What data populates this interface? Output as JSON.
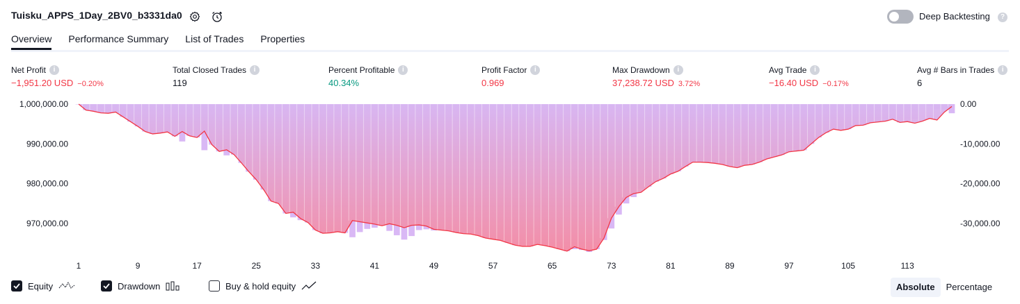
{
  "header": {
    "title": "Tuisku_APPS_1Day_2BV0_b3331da0",
    "deep_backtesting_label": "Deep Backtesting",
    "deep_backtesting_enabled": false
  },
  "tabs": [
    "Overview",
    "Performance Summary",
    "List of Trades",
    "Properties"
  ],
  "active_tab": "Overview",
  "metrics": {
    "net_profit": {
      "label": "Net Profit",
      "value": "−1,951.20 USD",
      "pct": "−0.20%"
    },
    "total_closed_trades": {
      "label": "Total Closed Trades",
      "value": "119"
    },
    "percent_profitable": {
      "label": "Percent Profitable",
      "value": "40.34%"
    },
    "profit_factor": {
      "label": "Profit Factor",
      "value": "0.969"
    },
    "max_drawdown": {
      "label": "Max Drawdown",
      "value": "37,238.72 USD",
      "pct": "3.72%"
    },
    "avg_trade": {
      "label": "Avg Trade",
      "value": "−16.40 USD",
      "pct": "−0.17%"
    },
    "avg_bars": {
      "label": "Avg # Bars in Trades",
      "value": "6"
    }
  },
  "legend": {
    "equity": {
      "label": "Equity",
      "checked": true
    },
    "drawdown": {
      "label": "Drawdown",
      "checked": true
    },
    "buy_hold": {
      "label": "Buy & hold equity",
      "checked": false
    }
  },
  "mode": {
    "options": [
      "Absolute",
      "Percentage"
    ],
    "selected": "Absolute"
  },
  "colors": {
    "equity_line": "#f23645",
    "drawdown_bar": "#d9b8f5",
    "area_top": "#d8b6f2",
    "area_bottom": "#f48ca4",
    "positive": "#089981",
    "negative": "#f23645"
  },
  "chart_data": {
    "type": "area",
    "x_tick_labels": [
      "1",
      "9",
      "17",
      "25",
      "33",
      "41",
      "49",
      "57",
      "65",
      "73",
      "81",
      "89",
      "97",
      "105",
      "113"
    ],
    "y_left_tick_labels": [
      "1,000,000.00",
      "990,000.00",
      "980,000.00",
      "970,000.00"
    ],
    "y_right_tick_labels": [
      "0.00",
      "-10,000.00",
      "-20,000.00",
      "-30,000.00"
    ],
    "ylim_left": [
      962800,
      1000000
    ],
    "ylim_right": [
      -37200,
      0
    ],
    "series": [
      {
        "kind": "equity",
        "x": [
          1,
          2,
          3,
          4,
          5,
          6,
          7,
          8,
          9,
          10,
          11,
          12,
          13,
          14,
          15,
          16,
          17,
          18,
          19,
          20,
          21,
          22,
          23,
          24,
          25,
          26,
          27,
          28,
          29,
          30,
          31,
          32,
          33,
          34,
          35,
          36,
          37,
          38,
          39,
          40,
          41,
          42,
          43,
          44,
          45,
          46,
          47,
          48,
          49,
          50,
          51,
          52,
          53,
          54,
          55,
          56,
          57,
          58,
          59,
          60,
          61,
          62,
          63,
          64,
          65,
          66,
          67,
          68,
          69,
          70,
          71,
          72,
          73,
          74,
          75,
          76,
          77,
          78,
          79,
          80,
          81,
          82,
          83,
          84,
          85,
          86,
          87,
          88,
          89,
          90,
          91,
          92,
          93,
          94,
          95,
          96,
          97,
          98,
          99,
          100,
          101,
          102,
          103,
          104,
          105,
          106,
          107,
          108,
          109,
          110,
          111,
          112,
          113,
          114,
          115,
          116,
          117,
          118,
          119
        ],
        "values": [
          1000000,
          998500,
          998200,
          997800,
          997700,
          998000,
          996800,
          995600,
          994400,
          993100,
          992500,
          992700,
          993000,
          991900,
          993100,
          992000,
          991600,
          993200,
          989800,
          988100,
          988500,
          987300,
          985200,
          983000,
          981000,
          978500,
          975600,
          975000,
          972500,
          972800,
          971200,
          970200,
          968300,
          967500,
          967600,
          967900,
          967600,
          970700,
          970400,
          970100,
          969800,
          969400,
          969900,
          969500,
          968900,
          969500,
          969600,
          969300,
          968500,
          968300,
          968100,
          967700,
          967400,
          967300,
          966900,
          966300,
          966000,
          965700,
          965100,
          964500,
          964200,
          964200,
          964700,
          964400,
          964000,
          963500,
          963000,
          964100,
          963500,
          963100,
          963500,
          966300,
          971300,
          974200,
          976500,
          977500,
          977800,
          979200,
          980500,
          981300,
          982400,
          983100,
          984300,
          985400,
          985400,
          985300,
          985100,
          984800,
          984300,
          984000,
          984600,
          984800,
          985400,
          986200,
          986700,
          987200,
          988000,
          988200,
          988400,
          990000,
          991600,
          992800,
          993700,
          993400,
          993700,
          994600,
          994700,
          995300,
          995500,
          995700,
          996200,
          995400,
          995600,
          995200,
          995700,
          996400,
          996000,
          998000,
          999400
        ]
      },
      {
        "kind": "drawdown_bars",
        "x": [
          1,
          2,
          3,
          4,
          5,
          6,
          7,
          8,
          9,
          10,
          11,
          12,
          13,
          14,
          15,
          16,
          17,
          18,
          19,
          20,
          21,
          22,
          23,
          24,
          25,
          26,
          27,
          28,
          29,
          30,
          31,
          32,
          33,
          34,
          35,
          36,
          37,
          38,
          39,
          40,
          41,
          42,
          43,
          44,
          45,
          46,
          47,
          48,
          49,
          50,
          51,
          52,
          53,
          54,
          55,
          56,
          57,
          58,
          59,
          60,
          61,
          62,
          63,
          64,
          65,
          66,
          67,
          68,
          69,
          70,
          71,
          72,
          73,
          74,
          75,
          76,
          77,
          78,
          79,
          80,
          81,
          82,
          83,
          84,
          85,
          86,
          87,
          88,
          89,
          90,
          91,
          92,
          93,
          94,
          95,
          96,
          97,
          98,
          99,
          100,
          101,
          102,
          103,
          104,
          105,
          106,
          107,
          108,
          109,
          110,
          111,
          112,
          113,
          114,
          115,
          116,
          117,
          118,
          119
        ],
        "values": [
          0,
          -1500,
          -1800,
          -2200,
          -2300,
          -2000,
          -3200,
          -4400,
          -5600,
          -6900,
          -7500,
          -7300,
          -7000,
          -8100,
          -9400,
          -8000,
          -8400,
          -11600,
          -10200,
          -11900,
          -12900,
          -12700,
          -14800,
          -17000,
          -19000,
          -21500,
          -24400,
          -25000,
          -27500,
          -28500,
          -29200,
          -29800,
          -31700,
          -32500,
          -32400,
          -32100,
          -32400,
          -33500,
          -32200,
          -31400,
          -31100,
          -30600,
          -31900,
          -33000,
          -34100,
          -33200,
          -31700,
          -31500,
          -31800,
          -31700,
          -31900,
          -32300,
          -32600,
          -32700,
          -33100,
          -33700,
          -34000,
          -34300,
          -34900,
          -35500,
          -35800,
          -35800,
          -35300,
          -35600,
          -36000,
          -36500,
          -37000,
          -36500,
          -36700,
          -37200,
          -36500,
          -34200,
          -31300,
          -27800,
          -25000,
          -23400,
          -21300,
          -20800,
          -19500,
          -18700,
          -17600,
          -16900,
          -15700,
          -14600,
          -14600,
          -14700,
          -14900,
          -15200,
          -15700,
          -16000,
          -15400,
          -15200,
          -14600,
          -13800,
          -13300,
          -12800,
          -12000,
          -11800,
          -11600,
          -10000,
          -8400,
          -7200,
          -6300,
          -6600,
          -6300,
          -5400,
          -5300,
          -4700,
          -4500,
          -4300,
          -3800,
          -4600,
          -4400,
          -3800,
          0,
          -400,
          -1300,
          -1300,
          -2300
        ]
      }
    ]
  }
}
